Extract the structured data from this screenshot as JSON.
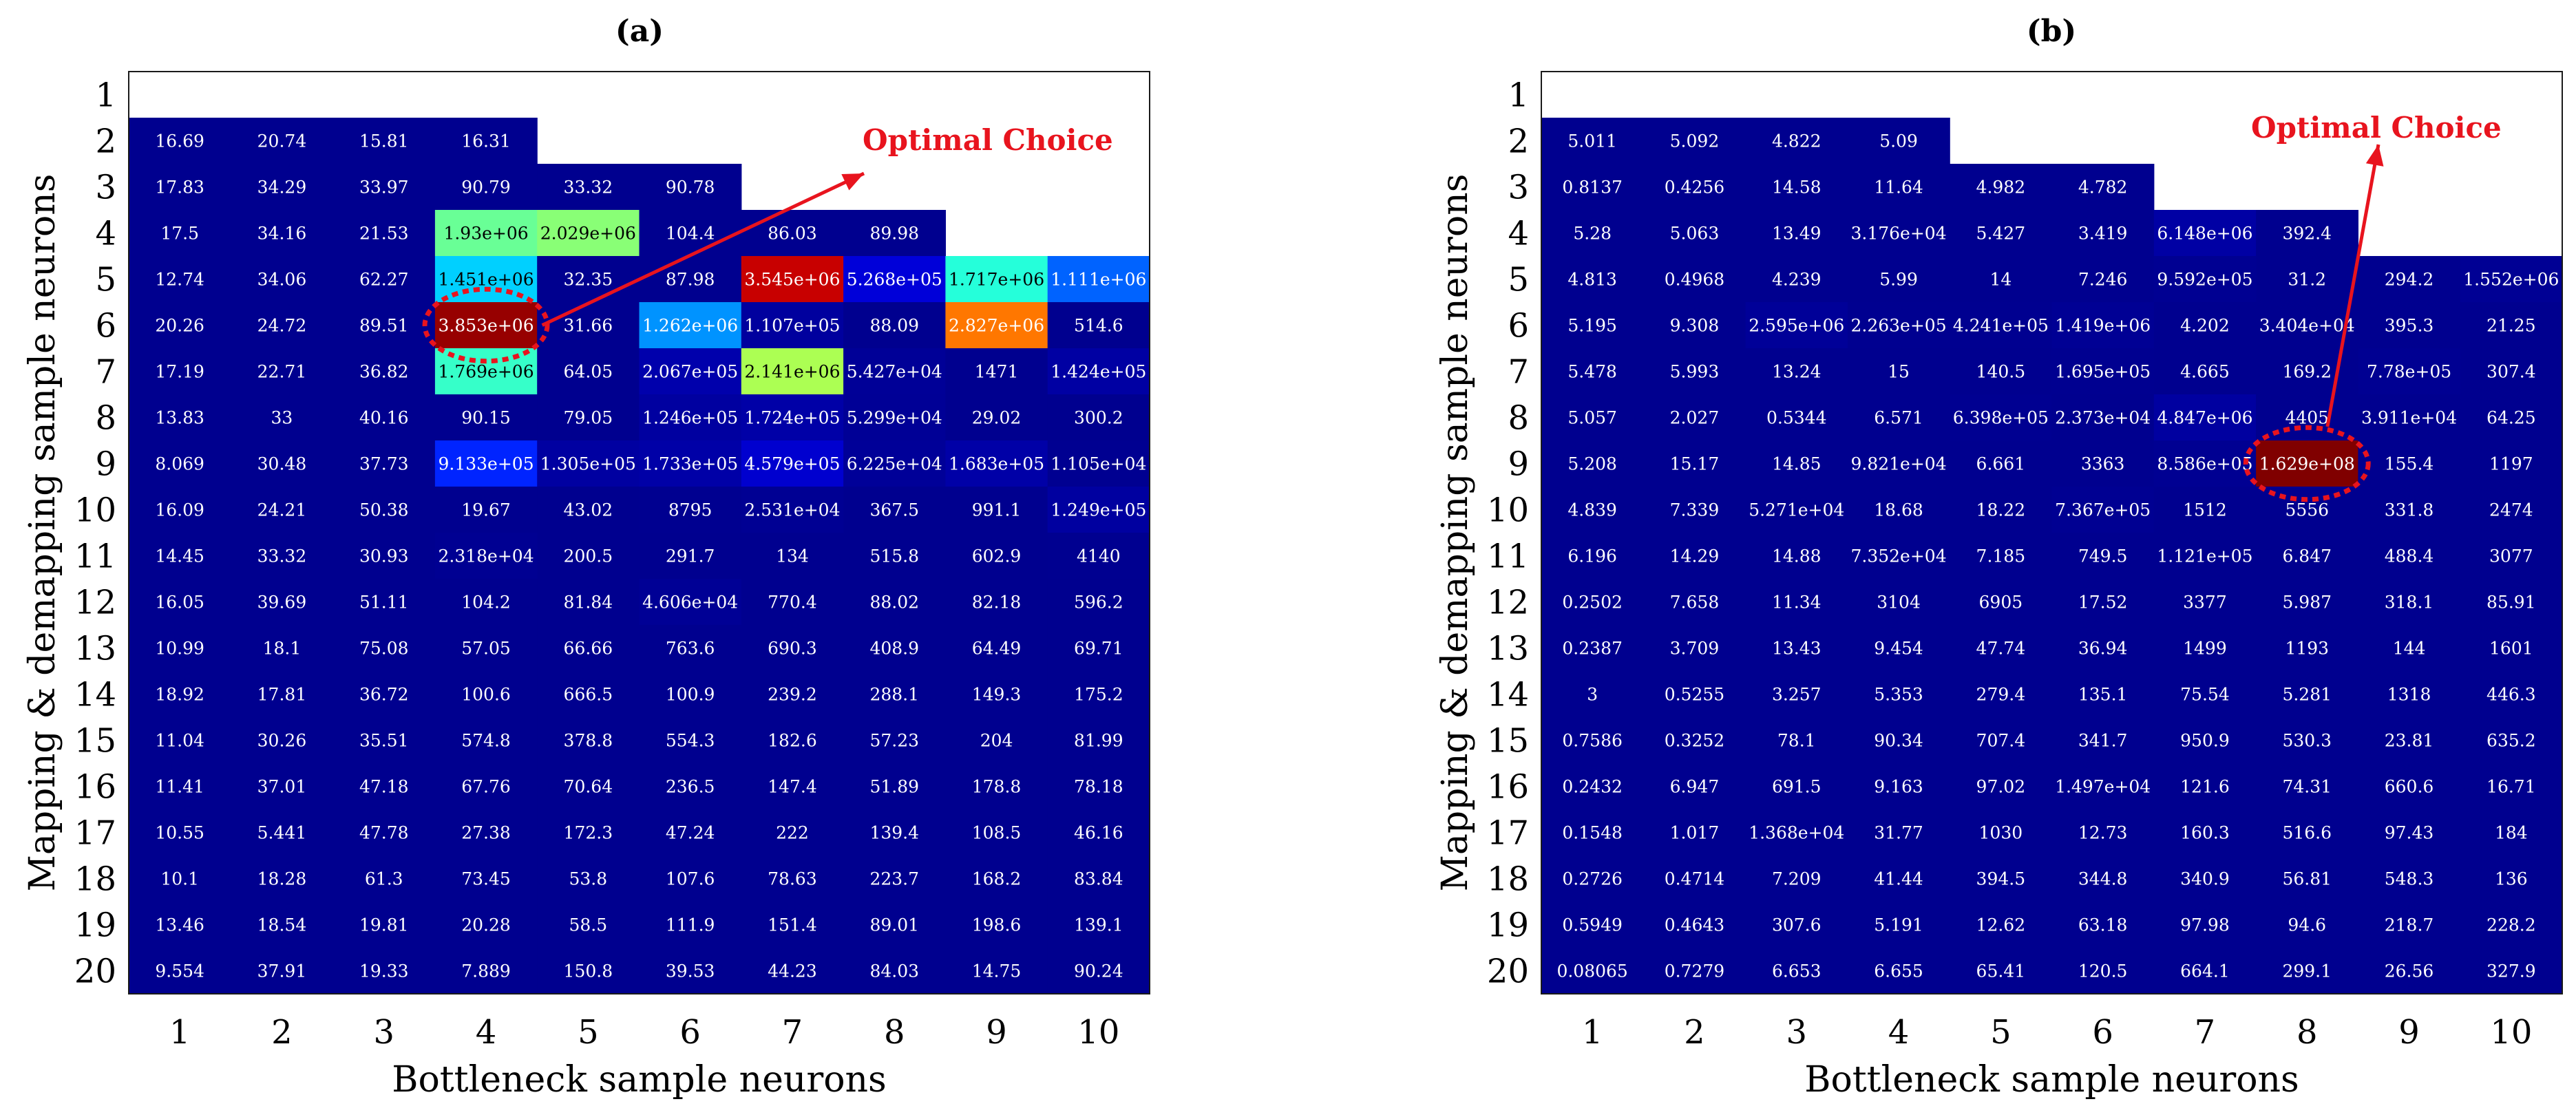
{
  "chart_data": [
    {
      "type": "heatmap",
      "panel_label": "(a)",
      "title": "(a)",
      "xlabel": "Bottleneck sample neurons",
      "ylabel": "Mapping & demapping sample neurons",
      "x_categories": [
        "1",
        "2",
        "3",
        "4",
        "5",
        "6",
        "7",
        "8",
        "9",
        "10"
      ],
      "y_categories": [
        "1",
        "2",
        "3",
        "4",
        "5",
        "6",
        "7",
        "8",
        "9",
        "10",
        "11",
        "12",
        "13",
        "14",
        "15",
        "16",
        "17",
        "18",
        "19",
        "20"
      ],
      "cells": [
        [
          null,
          null,
          null,
          null,
          null,
          null,
          null,
          null,
          null,
          null
        ],
        [
          "16.69",
          "20.74",
          "15.81",
          "16.31",
          null,
          null,
          null,
          null,
          null,
          null
        ],
        [
          "17.83",
          "34.29",
          "33.97",
          "90.79",
          "33.32",
          "90.78",
          null,
          null,
          null,
          null
        ],
        [
          "17.5",
          "34.16",
          "21.53",
          "1.93e+06",
          "2.029e+06",
          "104.4",
          "86.03",
          "89.98",
          null,
          null
        ],
        [
          "12.74",
          "34.06",
          "62.27",
          "1.451e+06",
          "32.35",
          "87.98",
          "3.545e+06",
          "5.268e+05",
          "1.717e+06",
          "1.111e+06"
        ],
        [
          "20.26",
          "24.72",
          "89.51",
          "3.853e+06",
          "31.66",
          "1.262e+06",
          "1.107e+05",
          "88.09",
          "2.827e+06",
          "514.6"
        ],
        [
          "17.19",
          "22.71",
          "36.82",
          "1.769e+06",
          "64.05",
          "2.067e+05",
          "2.141e+06",
          "5.427e+04",
          "1471",
          "1.424e+05"
        ],
        [
          "13.83",
          "33",
          "40.16",
          "90.15",
          "79.05",
          "1.246e+05",
          "1.724e+05",
          "5.299e+04",
          "29.02",
          "300.2"
        ],
        [
          "8.069",
          "30.48",
          "37.73",
          "9.133e+05",
          "1.305e+05",
          "1.733e+05",
          "4.579e+05",
          "6.225e+04",
          "1.683e+05",
          "1.105e+04"
        ],
        [
          "16.09",
          "24.21",
          "50.38",
          "19.67",
          "43.02",
          "8795",
          "2.531e+04",
          "367.5",
          "991.1",
          "1.249e+05"
        ],
        [
          "14.45",
          "33.32",
          "30.93",
          "2.318e+04",
          "200.5",
          "291.7",
          "134",
          "515.8",
          "602.9",
          "4140"
        ],
        [
          "16.05",
          "39.69",
          "51.11",
          "104.2",
          "81.84",
          "4.606e+04",
          "770.4",
          "88.02",
          "82.18",
          "596.2"
        ],
        [
          "10.99",
          "18.1",
          "75.08",
          "57.05",
          "66.66",
          "763.6",
          "690.3",
          "408.9",
          "64.49",
          "69.71"
        ],
        [
          "18.92",
          "17.81",
          "36.72",
          "100.6",
          "666.5",
          "100.9",
          "239.2",
          "288.1",
          "149.3",
          "175.2"
        ],
        [
          "11.04",
          "30.26",
          "35.51",
          "574.8",
          "378.8",
          "554.3",
          "182.6",
          "57.23",
          "204",
          "81.99"
        ],
        [
          "11.41",
          "37.01",
          "47.18",
          "67.76",
          "70.64",
          "236.5",
          "147.4",
          "51.89",
          "178.8",
          "78.18"
        ],
        [
          "10.55",
          "5.441",
          "47.78",
          "27.38",
          "172.3",
          "47.24",
          "222",
          "139.4",
          "108.5",
          "46.16"
        ],
        [
          "10.1",
          "18.28",
          "61.3",
          "73.45",
          "53.8",
          "107.6",
          "78.63",
          "223.7",
          "168.2",
          "83.84"
        ],
        [
          "13.46",
          "18.54",
          "19.81",
          "20.28",
          "58.5",
          "111.9",
          "151.4",
          "89.01",
          "198.6",
          "139.1"
        ],
        [
          "9.554",
          "37.91",
          "19.33",
          "7.889",
          "150.8",
          "39.53",
          "44.23",
          "84.03",
          "14.75",
          "90.24"
        ]
      ],
      "colorscale": {
        "min": 0,
        "max": 4000000,
        "stops": [
          "#00008f",
          "#0000ff",
          "#00ffff",
          "#ffff00",
          "#ff0000",
          "#800000"
        ]
      },
      "highlight": {
        "row": 6,
        "col": 4,
        "color": "#e8141e"
      },
      "annotation": {
        "text": "Optimal Choice",
        "color": "#e8141e",
        "target_row": 6,
        "target_col": 4
      }
    },
    {
      "type": "heatmap",
      "panel_label": "(b)",
      "title": "(b)",
      "xlabel": "Bottleneck sample neurons",
      "ylabel": "Mapping & demapping sample neurons",
      "x_categories": [
        "1",
        "2",
        "3",
        "4",
        "5",
        "6",
        "7",
        "8",
        "9",
        "10"
      ],
      "y_categories": [
        "1",
        "2",
        "3",
        "4",
        "5",
        "6",
        "7",
        "8",
        "9",
        "10",
        "11",
        "12",
        "13",
        "14",
        "15",
        "16",
        "17",
        "18",
        "19",
        "20"
      ],
      "cells": [
        [
          null,
          null,
          null,
          null,
          null,
          null,
          null,
          null,
          null,
          null
        ],
        [
          "5.011",
          "5.092",
          "4.822",
          "5.09",
          null,
          null,
          null,
          null,
          null,
          null
        ],
        [
          "0.8137",
          "0.4256",
          "14.58",
          "11.64",
          "4.982",
          "4.782",
          null,
          null,
          null,
          null
        ],
        [
          "5.28",
          "5.063",
          "13.49",
          "3.176e+04",
          "5.427",
          "3.419",
          "6.148e+06",
          "392.4",
          null,
          null
        ],
        [
          "4.813",
          "0.4968",
          "4.239",
          "5.99",
          "14",
          "7.246",
          "9.592e+05",
          "31.2",
          "294.2",
          "1.552e+06"
        ],
        [
          "5.195",
          "9.308",
          "2.595e+06",
          "2.263e+05",
          "4.241e+05",
          "1.419e+06",
          "4.202",
          "3.404e+04",
          "395.3",
          "21.25"
        ],
        [
          "5.478",
          "5.993",
          "13.24",
          "15",
          "140.5",
          "1.695e+05",
          "4.665",
          "169.2",
          "7.78e+05",
          "307.4"
        ],
        [
          "5.057",
          "2.027",
          "0.5344",
          "6.571",
          "6.398e+05",
          "2.373e+04",
          "4.847e+06",
          "4405",
          "3.911e+04",
          "64.25"
        ],
        [
          "5.208",
          "15.17",
          "14.85",
          "9.821e+04",
          "6.661",
          "3363",
          "8.586e+05",
          "1.629e+08",
          "155.4",
          "1197"
        ],
        [
          "4.839",
          "7.339",
          "5.271e+04",
          "18.68",
          "18.22",
          "7.367e+05",
          "1512",
          "5556",
          "331.8",
          "2474"
        ],
        [
          "6.196",
          "14.29",
          "14.88",
          "7.352e+04",
          "7.185",
          "749.5",
          "1.121e+05",
          "6.847",
          "488.4",
          "3077"
        ],
        [
          "0.2502",
          "7.658",
          "11.34",
          "3104",
          "6905",
          "17.52",
          "3377",
          "5.987",
          "318.1",
          "85.91"
        ],
        [
          "0.2387",
          "3.709",
          "13.43",
          "9.454",
          "47.74",
          "36.94",
          "1499",
          "1193",
          "144",
          "1601"
        ],
        [
          "3",
          "0.5255",
          "3.257",
          "5.353",
          "279.4",
          "135.1",
          "75.54",
          "5.281",
          "1318",
          "446.3"
        ],
        [
          "0.7586",
          "0.3252",
          "78.1",
          "90.34",
          "707.4",
          "341.7",
          "950.9",
          "530.3",
          "23.81",
          "635.2"
        ],
        [
          "0.2432",
          "6.947",
          "691.5",
          "9.163",
          "97.02",
          "1.497e+04",
          "121.6",
          "74.31",
          "660.6",
          "16.71"
        ],
        [
          "0.1548",
          "1.017",
          "1.368e+04",
          "31.77",
          "1030",
          "12.73",
          "160.3",
          "516.6",
          "97.43",
          "184"
        ],
        [
          "0.2726",
          "0.4714",
          "7.209",
          "41.44",
          "394.5",
          "344.8",
          "340.9",
          "56.81",
          "548.3",
          "136"
        ],
        [
          "0.5949",
          "0.4643",
          "307.6",
          "5.191",
          "12.62",
          "63.18",
          "97.98",
          "94.6",
          "218.7",
          "228.2"
        ],
        [
          "0.08065",
          "0.7279",
          "6.653",
          "6.655",
          "65.41",
          "120.5",
          "664.1",
          "299.1",
          "26.56",
          "327.9"
        ]
      ],
      "colorscale": {
        "min": 0,
        "max": 162900000.0,
        "stops": [
          "#00008f",
          "#0000ff",
          "#00ffff",
          "#ffff00",
          "#ff0000",
          "#800000"
        ]
      },
      "highlight": {
        "row": 9,
        "col": 8,
        "color": "#e8141e"
      },
      "annotation": {
        "text": "Optimal Choice",
        "color": "#e8141e",
        "target_row": 9,
        "target_col": 8
      }
    }
  ]
}
